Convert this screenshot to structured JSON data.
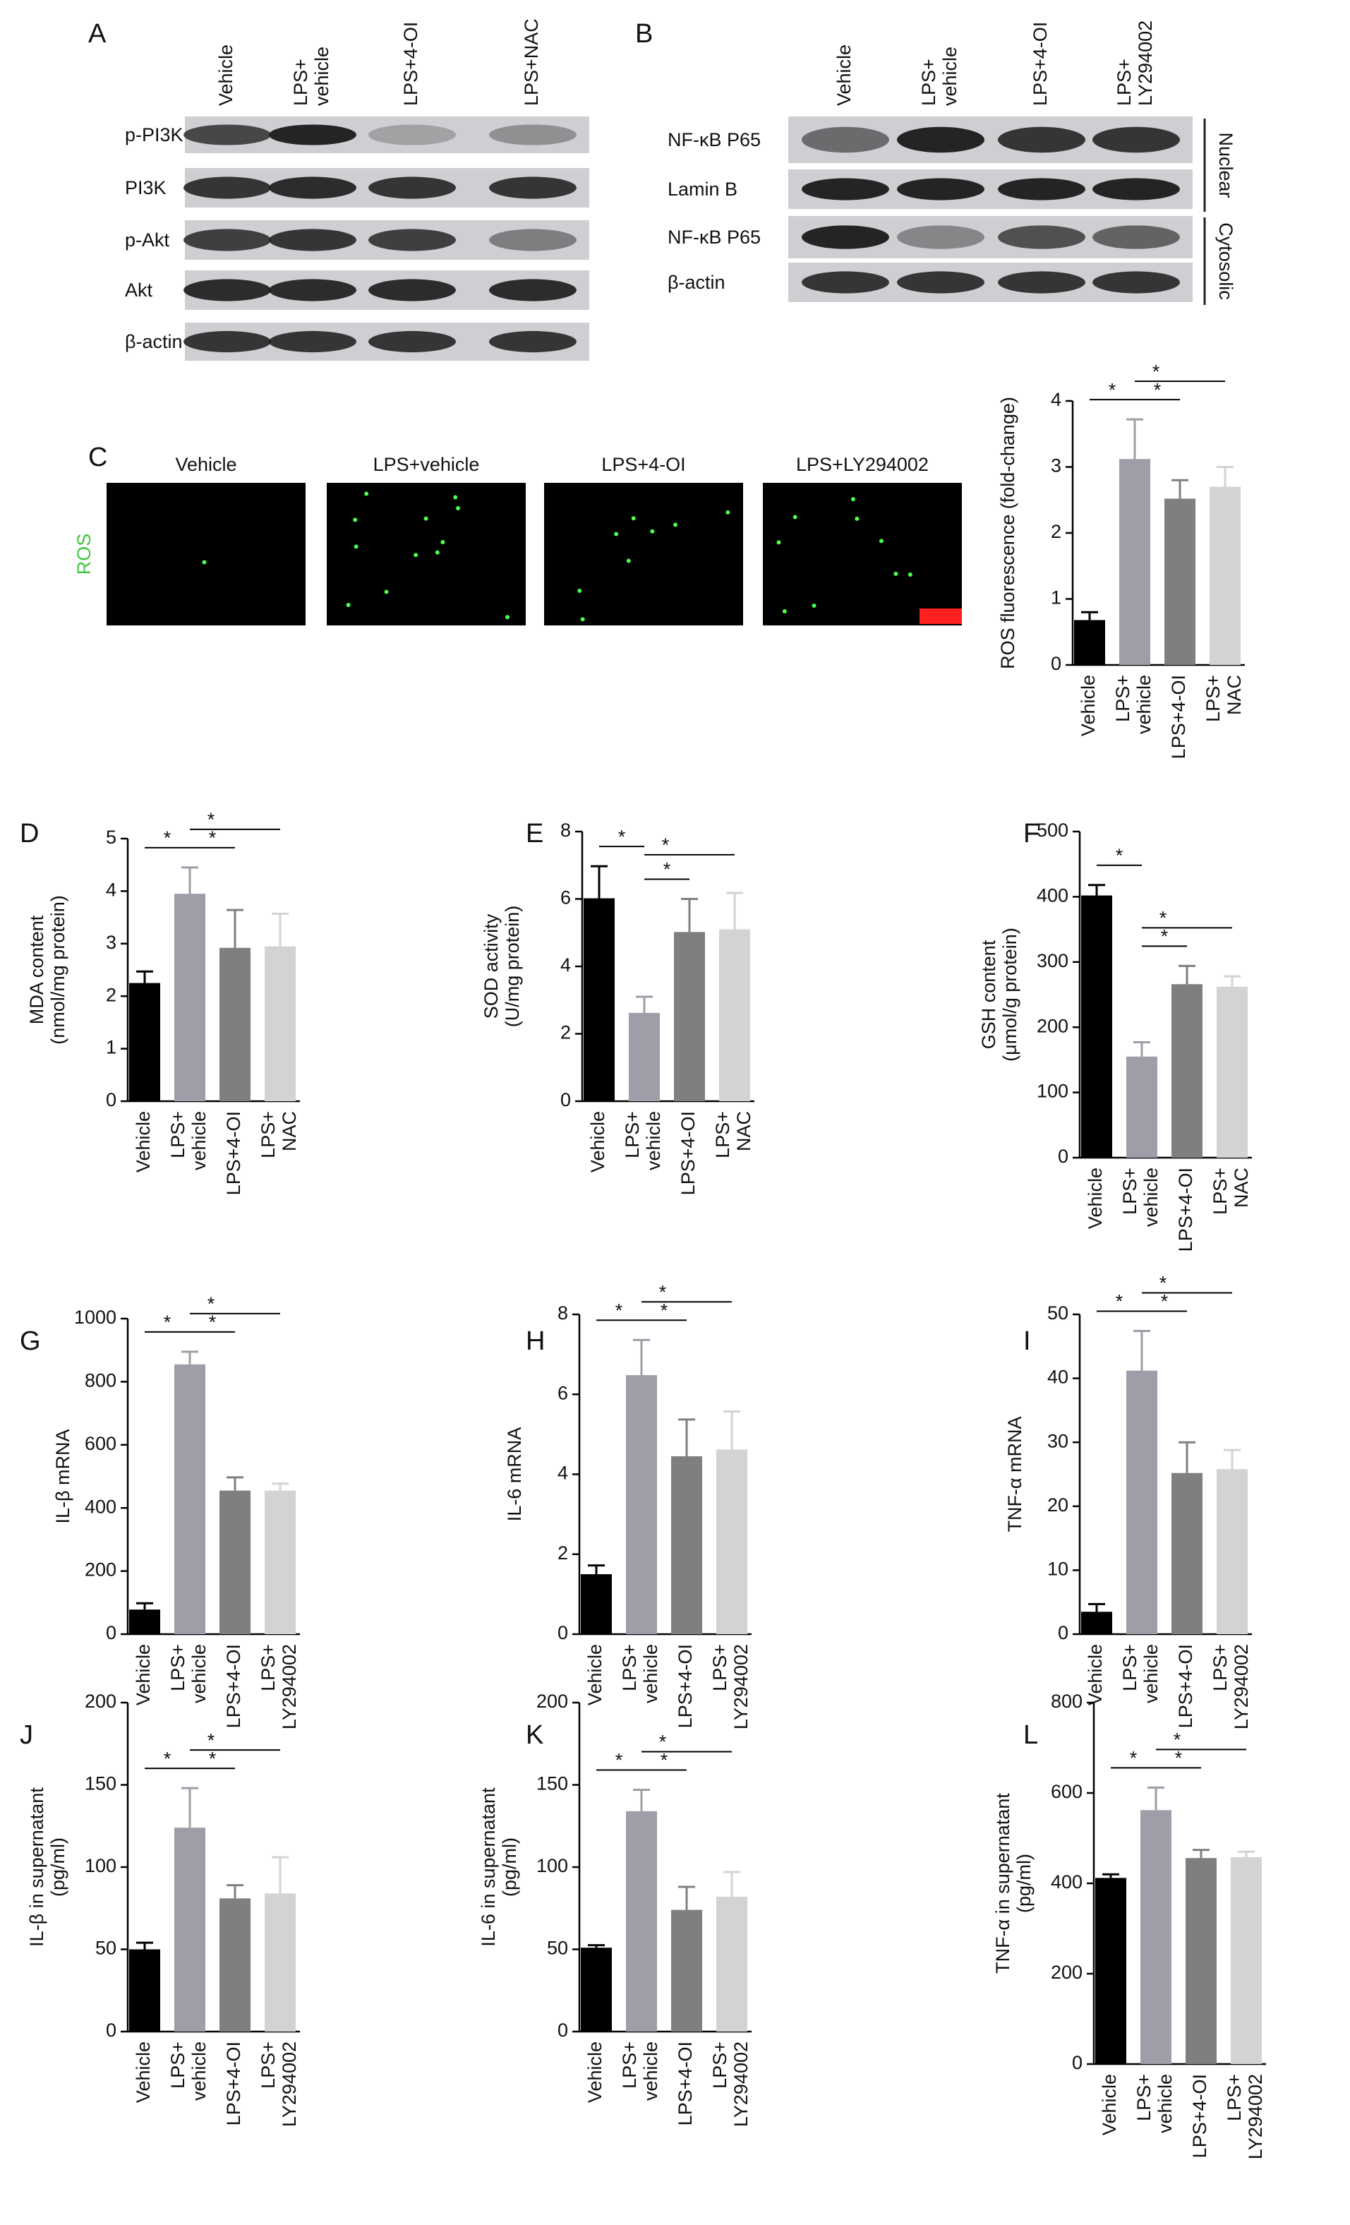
{
  "blots": [
    {
      "panel": "A",
      "lanes": [
        "Vehicle",
        "LPS+\nvehicle",
        "LPS+4-OI",
        "LPS+NAC"
      ],
      "rows": [
        "p-PI3K",
        "PI3K",
        "p-Akt",
        "Akt",
        "β-actin"
      ]
    },
    {
      "panel": "B",
      "lanes": [
        "Vehicle",
        "LPS+\nvehicle",
        "LPS+4-OI",
        "LPS+\nLY294002"
      ],
      "rows": [
        "NF-κB P65",
        "Lamin B",
        "NF-κB P65",
        "β-actin"
      ],
      "fractions": [
        "Nuclear",
        "Cytosolic"
      ]
    }
  ],
  "ros_images": {
    "panel": "C",
    "stain": "ROS",
    "titles": [
      "Vehicle",
      "LPS+vehicle",
      "LPS+4-OI",
      "LPS+LY294002"
    ]
  },
  "chart_data": [
    {
      "type": "bar",
      "ylabel": "ROS fluorescence (fold-change)",
      "categories": [
        "Vehicle",
        "LPS+\nvehicle",
        "LPS+4-OI",
        "LPS+\nNAC"
      ],
      "values": [
        0.68,
        3.12,
        2.52,
        2.7
      ],
      "errors": [
        0.12,
        0.6,
        0.28,
        0.3
      ],
      "colors": [
        "#000000",
        "#9e9da8",
        "#7f7f7f",
        "#d3d3d3"
      ],
      "ylim": [
        0,
        4
      ],
      "yticks": [
        0,
        1,
        2,
        3,
        4
      ],
      "annotations": [
        "*",
        "*",
        "*"
      ]
    },
    {
      "type": "bar",
      "panel": "D",
      "ylabel": "MDA content\n(nmol/mg protein)",
      "categories": [
        "Vehicle",
        "LPS+\nvehicle",
        "LPS+4-OI",
        "LPS+\nNAC"
      ],
      "values": [
        2.25,
        3.95,
        2.92,
        2.95
      ],
      "errors": [
        0.22,
        0.5,
        0.72,
        0.62
      ],
      "colors": [
        "#000000",
        "#9e9da8",
        "#7f7f7f",
        "#d3d3d3"
      ],
      "ylim": [
        0,
        5
      ],
      "yticks": [
        0,
        1,
        2,
        3,
        4,
        5
      ],
      "annotations": [
        "*",
        "*",
        "*"
      ]
    },
    {
      "type": "bar",
      "panel": "E",
      "ylabel": "SOD activity\n(U/mg protein)",
      "categories": [
        "Vehicle",
        "LPS+\nvehicle",
        "LPS+4-OI",
        "LPS+\nNAC"
      ],
      "values": [
        6.02,
        2.62,
        5.02,
        5.1
      ],
      "errors": [
        0.95,
        0.48,
        0.98,
        1.08
      ],
      "colors": [
        "#000000",
        "#9e9da8",
        "#7f7f7f",
        "#d3d3d3"
      ],
      "ylim": [
        0,
        8
      ],
      "yticks": [
        0,
        2,
        4,
        6,
        8
      ],
      "annotations": [
        "*",
        "*",
        "*"
      ]
    },
    {
      "type": "bar",
      "panel": "F",
      "ylabel": "GSH content\n(μmol/g protein)",
      "categories": [
        "Vehicle",
        "LPS+\nvehicle",
        "LPS+4-OI",
        "LPS+\nNAC"
      ],
      "values": [
        402,
        155,
        266,
        262
      ],
      "errors": [
        16,
        22,
        28,
        16
      ],
      "colors": [
        "#000000",
        "#9e9da8",
        "#7f7f7f",
        "#d3d3d3"
      ],
      "ylim": [
        0,
        500
      ],
      "yticks": [
        0,
        100,
        200,
        300,
        400,
        500
      ],
      "annotations": [
        "*",
        "*",
        "*"
      ]
    },
    {
      "type": "bar",
      "panel": "G",
      "ylabel": "IL-β mRNA",
      "categories": [
        "Vehicle",
        "LPS+\nvehicle",
        "LPS+4-OI",
        "LPS+\nLY294002"
      ],
      "values": [
        78,
        855,
        455,
        455
      ],
      "errors": [
        20,
        40,
        42,
        22
      ],
      "colors": [
        "#000000",
        "#9e9da8",
        "#7f7f7f",
        "#d3d3d3"
      ],
      "ylim": [
        0,
        1000
      ],
      "yticks": [
        0,
        200,
        400,
        600,
        800,
        1000
      ],
      "annotations": [
        "*",
        "*",
        "*"
      ]
    },
    {
      "type": "bar",
      "panel": "H",
      "ylabel": "IL-6 mRNA",
      "categories": [
        "Vehicle",
        "LPS+\nvehicle",
        "LPS+4-OI",
        "LPS+\nLY294002"
      ],
      "values": [
        1.5,
        6.48,
        4.45,
        4.62
      ],
      "errors": [
        0.22,
        0.88,
        0.92,
        0.95
      ],
      "colors": [
        "#000000",
        "#9e9da8",
        "#7f7f7f",
        "#d3d3d3"
      ],
      "ylim": [
        0,
        8
      ],
      "yticks": [
        0,
        2,
        4,
        6,
        8
      ],
      "annotations": [
        "*",
        "*",
        "*"
      ]
    },
    {
      "type": "bar",
      "panel": "I",
      "ylabel": "TNF-α mRNA",
      "categories": [
        "Vehicle",
        "LPS+\nvehicle",
        "LPS+4-OI",
        "LPS+\nLY294002"
      ],
      "values": [
        3.5,
        41.2,
        25.2,
        25.8
      ],
      "errors": [
        1.2,
        6.2,
        4.8,
        3.0
      ],
      "colors": [
        "#000000",
        "#9e9da8",
        "#7f7f7f",
        "#d3d3d3"
      ],
      "ylim": [
        0,
        50
      ],
      "yticks": [
        0,
        10,
        20,
        30,
        40,
        50
      ],
      "annotations": [
        "*",
        "*",
        "*"
      ]
    },
    {
      "type": "bar",
      "panel": "J",
      "ylabel": "IL-β in supernatant\n(pg/ml)",
      "categories": [
        "Vehicle",
        "LPS+\nvehicle",
        "LPS+4-OI",
        "LPS+\nLY294002"
      ],
      "values": [
        50,
        124,
        81,
        84
      ],
      "errors": [
        4,
        24,
        8,
        22
      ],
      "colors": [
        "#000000",
        "#9e9da8",
        "#7f7f7f",
        "#d3d3d3"
      ],
      "ylim": [
        0,
        200
      ],
      "yticks": [
        0,
        50,
        100,
        150,
        200
      ],
      "annotations": [
        "*",
        "*",
        "*"
      ]
    },
    {
      "type": "bar",
      "panel": "K",
      "ylabel": "IL-6 in supernatant\n(pg/ml)",
      "categories": [
        "Vehicle",
        "LPS+\nvehicle",
        "LPS+4-OI",
        "LPS+\nLY294002"
      ],
      "values": [
        51,
        134,
        74,
        82
      ],
      "errors": [
        1.5,
        13,
        14,
        15
      ],
      "colors": [
        "#000000",
        "#9e9da8",
        "#7f7f7f",
        "#d3d3d3"
      ],
      "ylim": [
        0,
        200
      ],
      "yticks": [
        0,
        50,
        100,
        150,
        200
      ],
      "annotations": [
        "*",
        "*",
        "*"
      ]
    },
    {
      "type": "bar",
      "panel": "L",
      "ylabel": "TNF-α in supernatant\n(pg/ml)",
      "categories": [
        "Vehicle",
        "LPS+\nvehicle",
        "LPS+4-OI",
        "LPS+\nLY294002"
      ],
      "values": [
        412,
        562,
        456,
        458
      ],
      "errors": [
        8,
        50,
        18,
        12
      ],
      "colors": [
        "#000000",
        "#9e9da8",
        "#7f7f7f",
        "#d3d3d3"
      ],
      "ylim": [
        0,
        800
      ],
      "yticks": [
        0,
        200,
        400,
        600,
        800
      ],
      "annotations": [
        "*",
        "*",
        "*"
      ]
    }
  ]
}
